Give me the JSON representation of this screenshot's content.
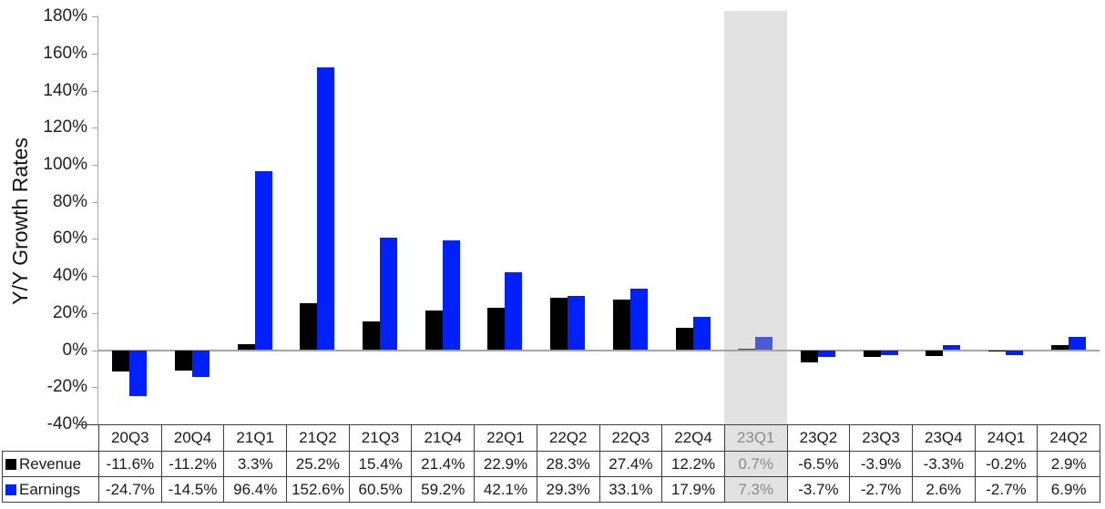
{
  "chart_data": {
    "type": "bar",
    "title": "",
    "ylabel": "Y/Y Growth Rates",
    "xlabel": "",
    "ylim": [
      -40,
      180
    ],
    "ytick_values": [
      180,
      160,
      140,
      120,
      100,
      80,
      60,
      40,
      20,
      0,
      -20,
      -40
    ],
    "ytick_labels": [
      "180%",
      "160%",
      "140%",
      "120%",
      "100%",
      "80%",
      "60%",
      "40%",
      "20%",
      "0%",
      "-20%",
      "-40%"
    ],
    "grid": false,
    "legend_position": "data-table-row-headers",
    "categories": [
      "20Q3",
      "20Q4",
      "21Q1",
      "21Q2",
      "21Q3",
      "21Q4",
      "22Q1",
      "22Q2",
      "22Q3",
      "22Q4",
      "23Q1",
      "23Q2",
      "23Q3",
      "23Q4",
      "24Q1",
      "24Q2"
    ],
    "series": [
      {
        "name": "Revenue",
        "color": "#000000",
        "values": [
          -11.6,
          -11.2,
          3.3,
          25.2,
          15.4,
          21.4,
          22.9,
          28.3,
          27.4,
          12.2,
          0.7,
          -6.5,
          -3.9,
          -3.3,
          -0.2,
          2.9
        ],
        "display": [
          "-11.6%",
          "-11.2%",
          "3.3%",
          "25.2%",
          "15.4%",
          "21.4%",
          "22.9%",
          "28.3%",
          "27.4%",
          "12.2%",
          "0.7%",
          "-6.5%",
          "-3.9%",
          "-3.3%",
          "-0.2%",
          "2.9%"
        ]
      },
      {
        "name": "Earnings",
        "color": "#0020FF",
        "values": [
          -24.7,
          -14.5,
          96.4,
          152.6,
          60.5,
          59.2,
          42.1,
          29.3,
          33.1,
          17.9,
          7.3,
          -3.7,
          -2.7,
          2.6,
          -2.7,
          6.9
        ],
        "display": [
          "-24.7%",
          "-14.5%",
          "96.4%",
          "152.6%",
          "60.5%",
          "59.2%",
          "42.1%",
          "29.3%",
          "33.1%",
          "17.9%",
          "7.3%",
          "-3.7%",
          "-2.7%",
          "2.6%",
          "-2.7%",
          "6.9%"
        ]
      }
    ],
    "highlight": {
      "category": "23Q1",
      "band_color": "#E2E2E2",
      "muted_text_color": "#8A8A8A",
      "revenue_bar_color": "#3F3F3F",
      "earnings_bar_color": "#4A5AD8"
    }
  }
}
